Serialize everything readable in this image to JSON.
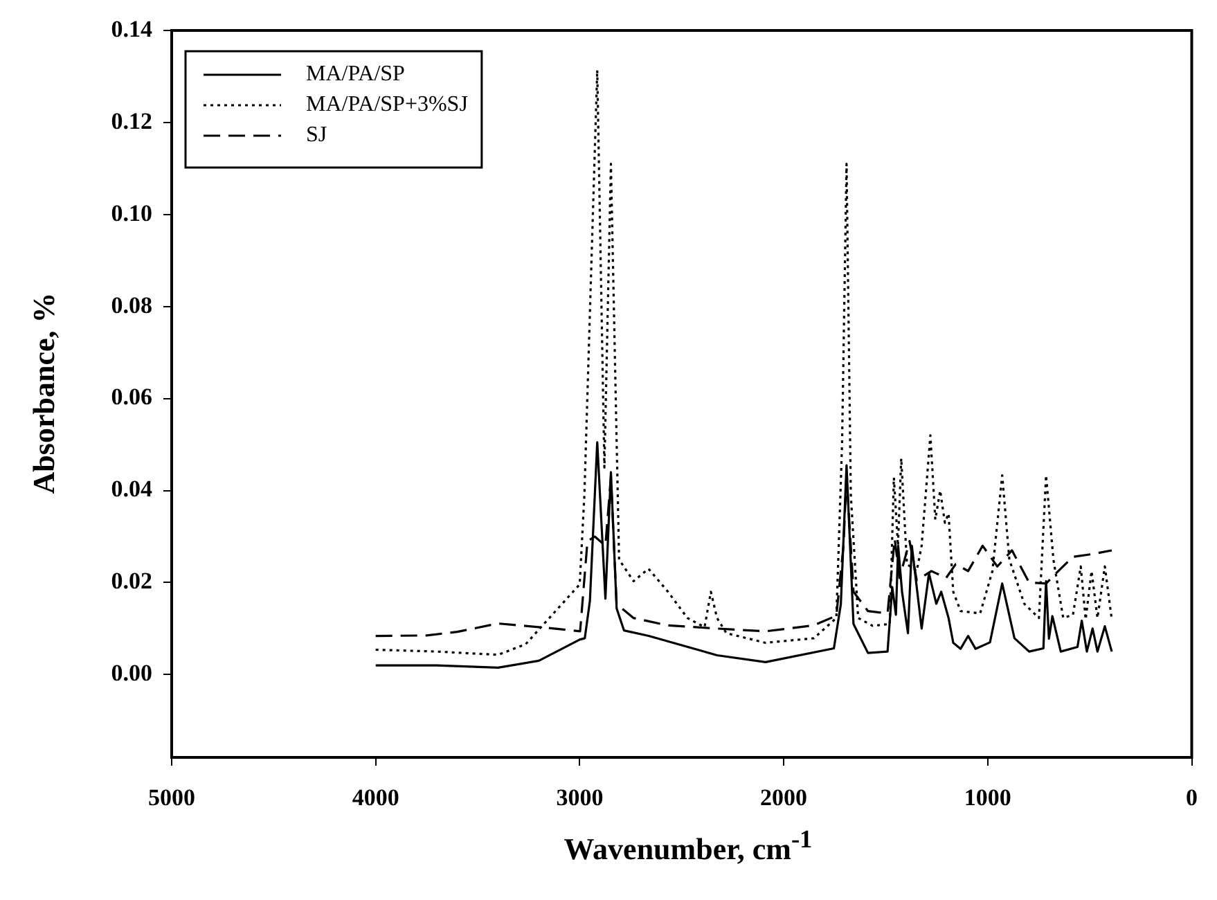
{
  "chart_data": {
    "type": "line",
    "xlabel": "Wavenumber, cm$^{-1}$",
    "ylabel": "Absorbance, %",
    "xlim": [
      5000,
      0
    ],
    "xticks": [
      5000,
      4000,
      3000,
      2000,
      1000,
      0
    ],
    "ylim": [
      -0.018,
      0.14
    ],
    "yticks": [
      {
        "value": 0,
        "label": "0.00"
      },
      {
        "value": 0.02,
        "label": "0.02"
      },
      {
        "value": 0.04,
        "label": "0.04"
      },
      {
        "value": 0.06,
        "label": "0.06"
      },
      {
        "value": 0.08,
        "label": "0.08"
      },
      {
        "value": 0.1,
        "label": "0.10"
      },
      {
        "value": 0.12,
        "label": "0.12"
      },
      {
        "value": 0.14,
        "label": "0.14"
      }
    ],
    "grid": false,
    "legend": "top left",
    "marker": "none",
    "series": [
      {
        "name": "MA/PA/SP",
        "color": "#000000",
        "line_style": "solid",
        "x": [
          4000,
          3700,
          3400,
          3200,
          3000,
          2975,
          2950,
          2914,
          2874,
          2847,
          2819,
          2783,
          2662,
          2327,
          2089,
          1754,
          1720,
          1692,
          1658,
          1587,
          1491,
          1468,
          1450,
          1439,
          1420,
          1391,
          1372,
          1324,
          1288,
          1252,
          1228,
          1192,
          1169,
          1133,
          1096,
          1060,
          989,
          929,
          869,
          797,
          727,
          714,
          700,
          683,
          642,
          560,
          539,
          514,
          486,
          462,
          426,
          392
        ],
        "values": [
          0.002,
          0.002,
          0.0015,
          0.003,
          0.0076,
          0.0079,
          0.016,
          0.0505,
          0.0165,
          0.044,
          0.0144,
          0.0096,
          0.0084,
          0.0042,
          0.0027,
          0.0057,
          0.0153,
          0.0455,
          0.011,
          0.0047,
          0.005,
          0.019,
          0.013,
          0.028,
          0.018,
          0.009,
          0.028,
          0.01,
          0.022,
          0.0154,
          0.018,
          0.0123,
          0.0069,
          0.0056,
          0.0084,
          0.0056,
          0.007,
          0.0198,
          0.0079,
          0.005,
          0.0057,
          0.0203,
          0.0078,
          0.0127,
          0.005,
          0.006,
          0.0117,
          0.005,
          0.01,
          0.005,
          0.0105,
          0.005
        ]
      },
      {
        "name": "MA/PA/SP+3%SJ",
        "color": "#000000",
        "line_style": "dotted",
        "x": [
          4000,
          3700,
          3400,
          3265,
          3000,
          2977,
          2914,
          2879,
          2847,
          2807,
          2736,
          2663,
          2569,
          2472,
          2388,
          2357,
          2327,
          2281,
          2089,
          1852,
          1742,
          1714,
          1692,
          1671,
          1635,
          1564,
          1480,
          1460,
          1440,
          1424,
          1396,
          1348,
          1324,
          1281,
          1257,
          1233,
          1210,
          1192,
          1169,
          1133,
          1037,
          977,
          929,
          894,
          821,
          749,
          714,
          678,
          630,
          582,
          544,
          520,
          491,
          462,
          426,
          392
        ],
        "values": [
          0.0054,
          0.005,
          0.0043,
          0.0066,
          0.0196,
          0.039,
          0.1314,
          0.045,
          0.111,
          0.025,
          0.0203,
          0.023,
          0.0181,
          0.0123,
          0.0103,
          0.018,
          0.0123,
          0.009,
          0.0069,
          0.0079,
          0.0123,
          0.05,
          0.111,
          0.039,
          0.0123,
          0.0106,
          0.011,
          0.0428,
          0.028,
          0.047,
          0.024,
          0.0225,
          0.028,
          0.052,
          0.0337,
          0.04,
          0.033,
          0.035,
          0.018,
          0.0138,
          0.0133,
          0.0225,
          0.0433,
          0.025,
          0.0154,
          0.0123,
          0.0433,
          0.025,
          0.0123,
          0.013,
          0.0235,
          0.012,
          0.0225,
          0.0123,
          0.0235,
          0.012
        ]
      },
      {
        "name": "SJ",
        "color": "#000000",
        "line_style": "dashed",
        "x": [
          4000,
          3750,
          3600,
          3400,
          3171,
          2998,
          2962,
          2926,
          2874,
          2847,
          2819,
          2736,
          2569,
          2327,
          2089,
          1852,
          1742,
          1707,
          1692,
          1658,
          1587,
          1491,
          1456,
          1432,
          1383,
          1348,
          1276,
          1204,
          1157,
          1096,
          1025,
          953,
          881,
          797,
          714,
          654,
          582,
          486,
          392
        ],
        "values": [
          0.0084,
          0.0085,
          0.0093,
          0.0111,
          0.0102,
          0.0094,
          0.029,
          0.03,
          0.028,
          0.043,
          0.0153,
          0.0123,
          0.0107,
          0.01,
          0.0094,
          0.0107,
          0.0128,
          0.028,
          0.0433,
          0.018,
          0.0138,
          0.0133,
          0.0295,
          0.021,
          0.029,
          0.0205,
          0.0225,
          0.021,
          0.024,
          0.0225,
          0.028,
          0.0235,
          0.027,
          0.02,
          0.0198,
          0.0225,
          0.0256,
          0.0262,
          0.027
        ]
      }
    ]
  }
}
